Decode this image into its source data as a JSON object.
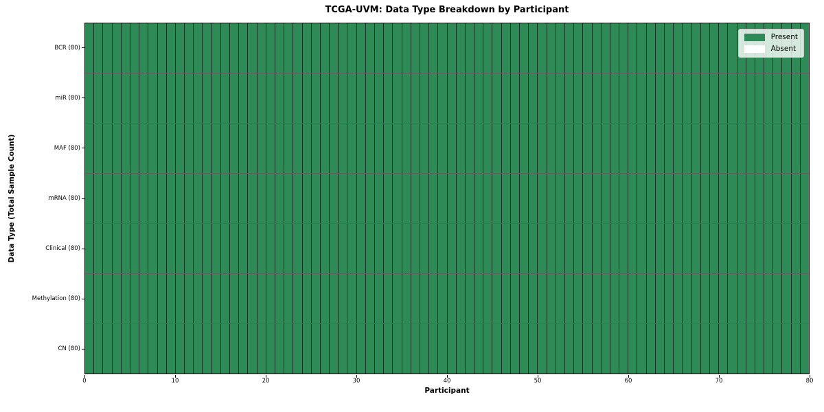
{
  "chart_data": {
    "type": "heatmap",
    "title": "TCGA-UVM: Data Type Breakdown by Participant",
    "xlabel": "Participant",
    "ylabel": "Data Type (Total Sample Count)",
    "x_range": [
      0,
      80
    ],
    "x_ticks": [
      0,
      10,
      20,
      30,
      40,
      50,
      60,
      70,
      80
    ],
    "n_participants": 80,
    "rows": [
      {
        "label": "BCR (80)",
        "present_count": 80,
        "absent_count": 0
      },
      {
        "label": "miR (80)",
        "present_count": 80,
        "absent_count": 0
      },
      {
        "label": "MAF (80)",
        "present_count": 80,
        "absent_count": 0
      },
      {
        "label": "mRNA (80)",
        "present_count": 80,
        "absent_count": 0
      },
      {
        "label": "Clinical (80)",
        "present_count": 80,
        "absent_count": 0
      },
      {
        "label": "Methylation (80)",
        "present_count": 80,
        "absent_count": 0
      },
      {
        "label": "CN (80)",
        "present_count": 80,
        "absent_count": 0
      }
    ],
    "legend": {
      "position": "upper right",
      "entries": [
        {
          "label": "Present",
          "color": "#2e8b57"
        },
        {
          "label": "Absent",
          "color": "#ffffff"
        }
      ]
    },
    "colors": {
      "present": "#2e8b57",
      "absent": "#ffffff",
      "cell_border": "#1c1c1c",
      "spine": "#000000"
    },
    "grid": "cell-borders",
    "legend_on": true
  }
}
